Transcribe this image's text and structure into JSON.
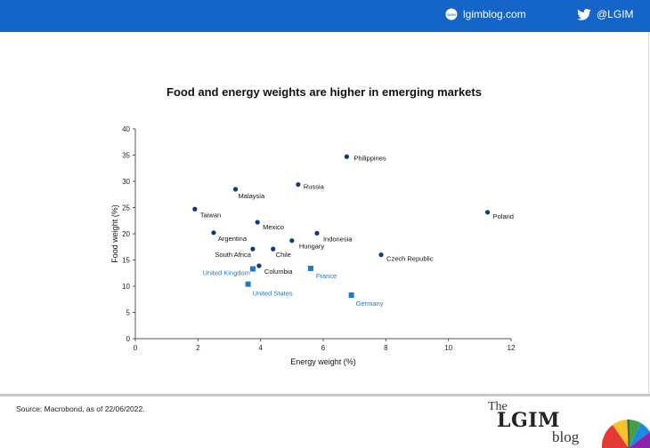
{
  "header": {
    "site_label": "lgimblog.com",
    "site_icon": "globe-www-icon",
    "twitter_label": "@LGIM",
    "twitter_icon": "twitter-bird-icon",
    "bar_color": "#1565c9"
  },
  "chart_data": {
    "type": "scatter",
    "title": "Food and energy weights are higher in emerging markets",
    "xlabel": "Energy weight (%)",
    "ylabel": "Food weight (%)",
    "xlim": [
      0,
      12
    ],
    "ylim": [
      0,
      40
    ],
    "xticks": [
      0,
      2,
      4,
      6,
      8,
      10,
      12
    ],
    "yticks": [
      0,
      5,
      10,
      15,
      20,
      25,
      30,
      35,
      40
    ],
    "grid": false,
    "series": [
      {
        "marker": "circle",
        "color": "#0b3d78",
        "points": [
          {
            "label": "Philippines",
            "x": 6.75,
            "y": 34.7
          },
          {
            "label": "Russia",
            "x": 5.2,
            "y": 29.4
          },
          {
            "label": "Malaysia",
            "x": 3.2,
            "y": 28.5
          },
          {
            "label": "Taiwan",
            "x": 1.9,
            "y": 24.7
          },
          {
            "label": "Poland",
            "x": 11.25,
            "y": 24.1
          },
          {
            "label": "Mexico",
            "x": 3.9,
            "y": 22.2
          },
          {
            "label": "Argentina",
            "x": 2.5,
            "y": 20.2
          },
          {
            "label": "Indonesia",
            "x": 5.8,
            "y": 20.1
          },
          {
            "label": "Hungary",
            "x": 5.0,
            "y": 18.7
          },
          {
            "label": "South Africa",
            "x": 3.75,
            "y": 17.1
          },
          {
            "label": "Chile",
            "x": 4.4,
            "y": 17.1
          },
          {
            "label": "Czech Republic",
            "x": 7.85,
            "y": 16.0
          },
          {
            "label": "Columbia",
            "x": 3.95,
            "y": 13.9
          }
        ]
      },
      {
        "marker": "square",
        "color": "#1f78c8",
        "points": [
          {
            "label": "United Kingdom",
            "x": 3.75,
            "y": 13.3
          },
          {
            "label": "France",
            "x": 5.6,
            "y": 13.4
          },
          {
            "label": "United States",
            "x": 3.6,
            "y": 10.4
          },
          {
            "label": "Germany",
            "x": 6.9,
            "y": 8.3
          }
        ]
      }
    ]
  },
  "footer": {
    "source": "Source: Macrobond, as of 22/06/2022.",
    "logo_the": "The",
    "logo_lgim": "LGIM",
    "logo_blog": "blog"
  }
}
